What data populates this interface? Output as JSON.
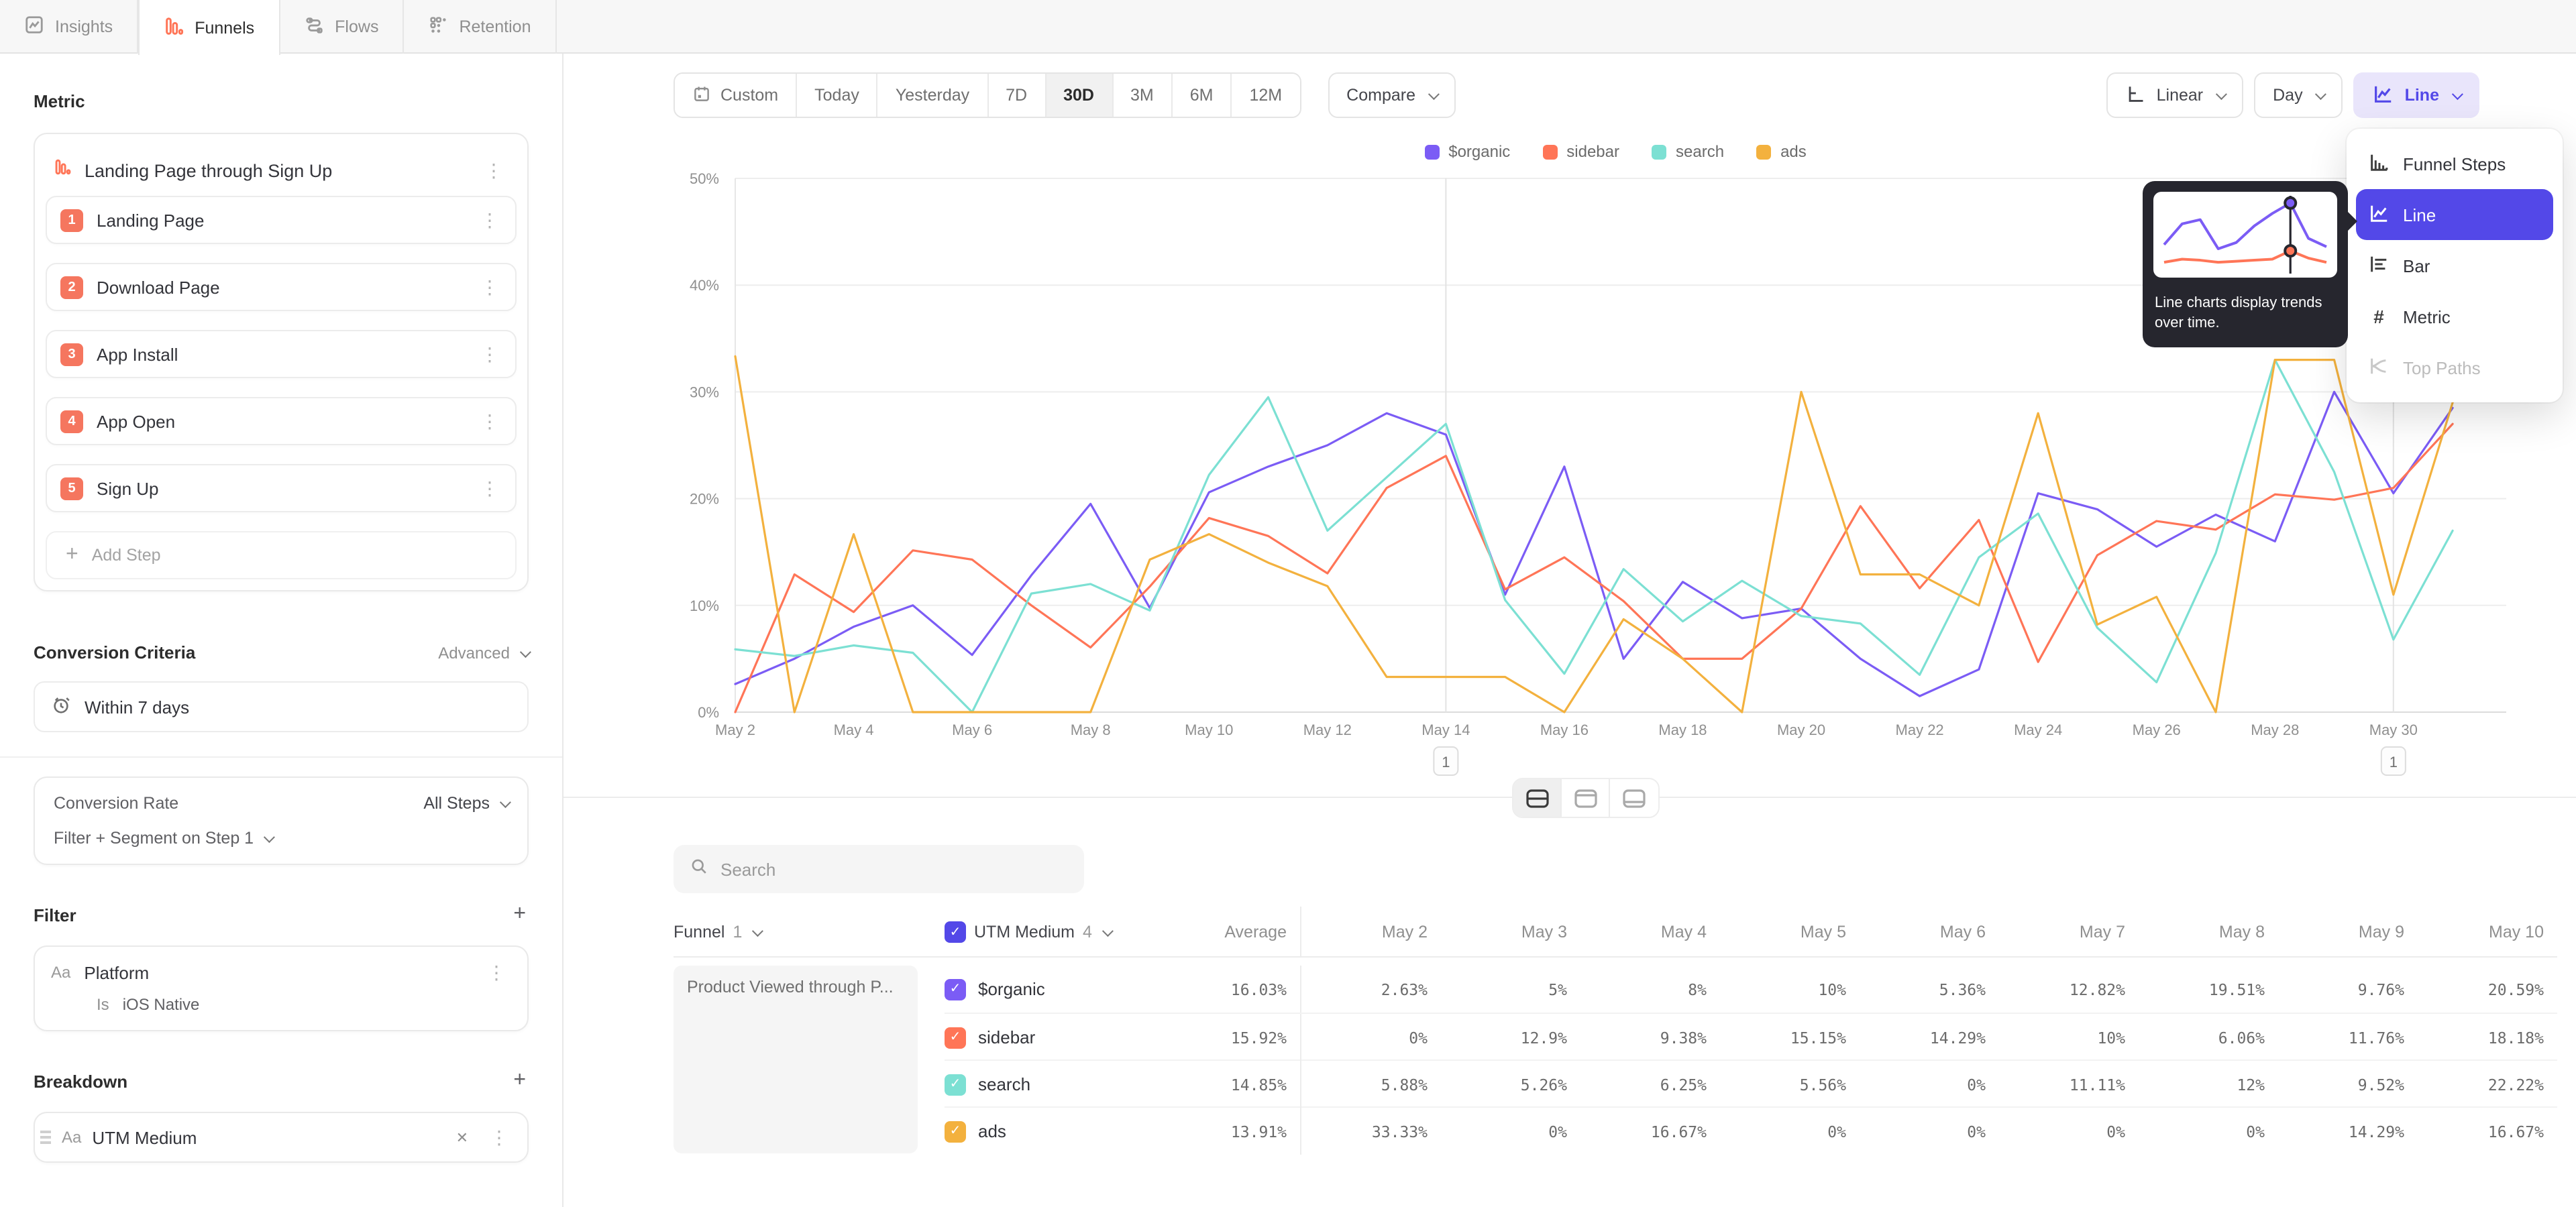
{
  "icons": {
    "plus": "+",
    "kebab": "⋮",
    "close": "✕",
    "check": "✓"
  },
  "tabs": {
    "items": [
      {
        "label": "Insights"
      },
      {
        "label": "Funnels"
      },
      {
        "label": "Flows"
      },
      {
        "label": "Retention"
      }
    ]
  },
  "sidebar": {
    "metric_heading": "Metric",
    "funnel": {
      "title": "Landing Page through Sign Up",
      "steps": [
        {
          "num": "1",
          "label": "Landing Page"
        },
        {
          "num": "2",
          "label": "Download Page"
        },
        {
          "num": "3",
          "label": "App Install"
        },
        {
          "num": "4",
          "label": "App Open"
        },
        {
          "num": "5",
          "label": "Sign Up"
        }
      ],
      "add_step_label": "Add Step"
    },
    "conversion_criteria": {
      "heading": "Conversion Criteria",
      "mode": "Advanced",
      "window": "Within 7 days"
    },
    "conversion_rate": {
      "label": "Conversion Rate",
      "value": "All Steps"
    },
    "filter_segment_label": "Filter + Segment on Step 1",
    "filter": {
      "heading": "Filter",
      "type": "Aa",
      "property": "Platform",
      "operator": "Is",
      "value": "iOS Native"
    },
    "breakdown": {
      "heading": "Breakdown",
      "type": "Aa",
      "property": "UTM Medium"
    }
  },
  "toolbar": {
    "date_ranges": [
      "Custom",
      "Today",
      "Yesterday",
      "7D",
      "30D",
      "3M",
      "6M",
      "12M"
    ],
    "selected_range": "30D",
    "compare_label": "Compare",
    "scale_label": "Linear",
    "interval_label": "Day",
    "chart_type_label": "Line"
  },
  "chart_menu": {
    "items": [
      {
        "label": "Funnel Steps"
      },
      {
        "label": "Line",
        "selected": true
      },
      {
        "label": "Bar"
      },
      {
        "label": "Metric"
      },
      {
        "label": "Top Paths",
        "disabled": true
      }
    ]
  },
  "tooltip": {
    "text": "Line charts display trends over time.",
    "mini": {
      "purple": [
        12,
        22,
        24,
        10,
        13,
        21,
        27,
        32,
        15,
        11
      ],
      "red": [
        3.5,
        5,
        4.5,
        3.5,
        4,
        4.5,
        5,
        9,
        5.5,
        3.5
      ],
      "cursor_index": 7
    }
  },
  "chart_data": {
    "type": "line",
    "unit": "%",
    "grid": true,
    "legend_position": "top",
    "ylim": [
      0,
      50
    ],
    "y_ticks": [
      "0%",
      "10%",
      "20%",
      "30%",
      "40%",
      "50%"
    ],
    "x": [
      "May 2",
      "May 3",
      "May 4",
      "May 5",
      "May 6",
      "May 7",
      "May 8",
      "May 9",
      "May 10",
      "May 11",
      "May 12",
      "May 13",
      "May 14",
      "May 15",
      "May 16",
      "May 17",
      "May 18",
      "May 19",
      "May 20",
      "May 21",
      "May 22",
      "May 23",
      "May 24",
      "May 25",
      "May 26",
      "May 27",
      "May 28",
      "May 29",
      "May 30",
      "May 31"
    ],
    "x_tick_labels": [
      "May 2",
      "May 4",
      "May 6",
      "May 8",
      "May 10",
      "May 12",
      "May 14",
      "May 16",
      "May 18",
      "May 20",
      "May 22",
      "May 24",
      "May 26",
      "May 28",
      "May 30"
    ],
    "annotations": [
      {
        "x": "May 14",
        "label": "1"
      },
      {
        "x": "May 30",
        "label": "1"
      }
    ],
    "series": [
      {
        "name": "$organic",
        "color": "#7b5cf5",
        "values": [
          2.63,
          5,
          8,
          10,
          5.36,
          12.82,
          19.51,
          9.76,
          20.59,
          23,
          25,
          28,
          26,
          11,
          23,
          5,
          12.2,
          8.8,
          9.7,
          5,
          1.5,
          4,
          20.5,
          19,
          15.5,
          18.5,
          16,
          30,
          20.5,
          28.5
        ]
      },
      {
        "name": "sidebar",
        "color": "#ff7557",
        "values": [
          0,
          12.9,
          9.38,
          15.15,
          14.29,
          10,
          6.06,
          11.76,
          18.18,
          16.5,
          13,
          21,
          24,
          11.5,
          14.5,
          10.4,
          5,
          5,
          9.7,
          19.3,
          11.6,
          18,
          4.7,
          14.7,
          17.9,
          17.1,
          20.4,
          19.9,
          21,
          27
        ]
      },
      {
        "name": "search",
        "color": "#7ce0d3",
        "values": [
          5.88,
          5.26,
          6.25,
          5.56,
          0,
          11.11,
          12,
          9.52,
          22.22,
          29.5,
          17,
          22,
          27,
          10.5,
          3.6,
          13.4,
          8.5,
          12.3,
          9,
          8.3,
          3.5,
          14.5,
          18.6,
          7.9,
          2.8,
          14.9,
          33,
          22.5,
          6.8,
          17
        ]
      },
      {
        "name": "ads",
        "color": "#f3b13e",
        "values": [
          33.33,
          0,
          16.67,
          0,
          0,
          0,
          0,
          14.29,
          16.67,
          14,
          11.8,
          3.3,
          3.3,
          3.3,
          0,
          8.7,
          5,
          0,
          30,
          12.9,
          12.9,
          10,
          28,
          8.2,
          10.8,
          0,
          33,
          33,
          11,
          29
        ]
      }
    ]
  },
  "view_toggles": {
    "options": [
      "split-view",
      "chart-view",
      "table-view"
    ],
    "selected": "split-view"
  },
  "table": {
    "search_placeholder": "Search",
    "funnel_header": {
      "label": "Funnel",
      "count": "1"
    },
    "breakdown_header": {
      "label": "UTM Medium",
      "count": "4"
    },
    "group_label": "Product Viewed through P...",
    "columns": [
      "Average",
      "May 2",
      "May 3",
      "May 4",
      "May 5",
      "May 6",
      "May 7",
      "May 8",
      "May 9",
      "May 10"
    ],
    "rows": [
      {
        "name": "$organic",
        "color": "#7b5cf5",
        "values": [
          "16.03%",
          "2.63%",
          "5%",
          "8%",
          "10%",
          "5.36%",
          "12.82%",
          "19.51%",
          "9.76%",
          "20.59%"
        ]
      },
      {
        "name": "sidebar",
        "color": "#ff7557",
        "values": [
          "15.92%",
          "0%",
          "12.9%",
          "9.38%",
          "15.15%",
          "14.29%",
          "10%",
          "6.06%",
          "11.76%",
          "18.18%"
        ]
      },
      {
        "name": "search",
        "color": "#7ce0d3",
        "values": [
          "14.85%",
          "5.88%",
          "5.26%",
          "6.25%",
          "5.56%",
          "0%",
          "11.11%",
          "12%",
          "9.52%",
          "22.22%"
        ]
      },
      {
        "name": "ads",
        "color": "#f3b13e",
        "values": [
          "13.91%",
          "33.33%",
          "0%",
          "16.67%",
          "0%",
          "0%",
          "0%",
          "0%",
          "14.29%",
          "16.67%"
        ]
      }
    ]
  },
  "colors": {
    "accent_purple": "#5348e8",
    "step_badge": "#f5765f",
    "tab_icon_red": "#ff7557"
  }
}
